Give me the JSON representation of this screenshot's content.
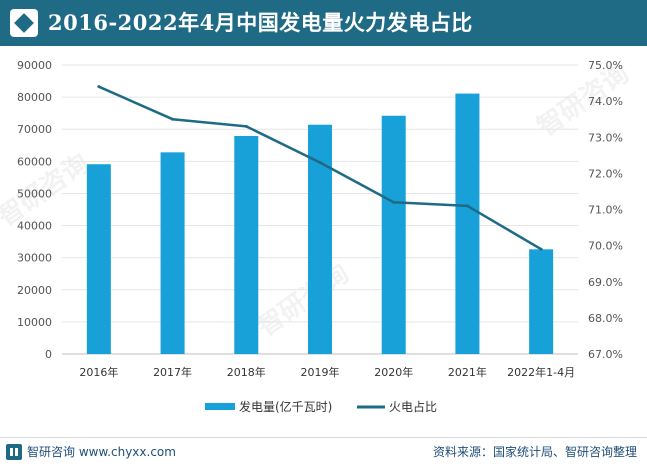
{
  "title": "2016-2022年4月中国发电量火力发电占比",
  "footer": {
    "brand": "智研咨询",
    "website": "www.chyxx.com",
    "source": "资料来源：国家统计局、智研咨询整理"
  },
  "watermark": "智研咨询",
  "colors": {
    "bar": "#18a0d8",
    "line": "#1f6b86",
    "titlebar": "#1f6b86"
  },
  "chart_data": {
    "type": "bar+line",
    "categories": [
      "2016年",
      "2017年",
      "2018年",
      "2019年",
      "2020年",
      "2021年",
      "2022年1-4月"
    ],
    "series": [
      {
        "name": "发电量(亿千瓦时)",
        "type": "bar",
        "axis": "left",
        "values": [
          59100,
          62800,
          67900,
          71400,
          74200,
          81100,
          32600
        ]
      },
      {
        "name": "火电占比",
        "type": "line",
        "axis": "right",
        "values": [
          74.4,
          73.5,
          73.3,
          72.3,
          71.2,
          71.1,
          69.9
        ]
      }
    ],
    "y_left": {
      "min": 0,
      "max": 90000,
      "step": 10000
    },
    "y_right": {
      "min": 67.0,
      "max": 75.0,
      "step": 1.0,
      "format": "0.0%"
    },
    "legend_position": "bottom"
  }
}
